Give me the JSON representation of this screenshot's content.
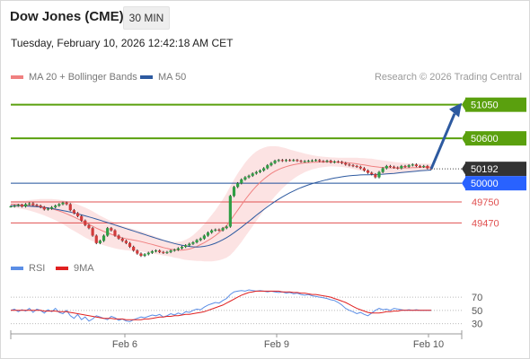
{
  "header": {
    "title": "Dow Jones (CME)",
    "timeframe_button": "30 MIN",
    "datetime": "Tuesday, February 10, 2026 12:42:18 AM CET",
    "copyright": "Research © 2026 Trading Central"
  },
  "legends": {
    "main": [
      {
        "label": "MA 20 + Bollinger Bands",
        "color": "#f08080"
      },
      {
        "label": "MA 50",
        "color": "#2d5aa0"
      }
    ],
    "rsi": [
      {
        "label": "RSI",
        "color": "#5b8ee6"
      },
      {
        "label": "9MA",
        "color": "#e02020"
      }
    ]
  },
  "chart_data": [
    {
      "type": "candlestick",
      "name": "price",
      "x_tick_labels": [
        "Feb 6",
        "Feb 9",
        "Feb 10"
      ],
      "ylim": [
        49150,
        51250
      ],
      "levels": [
        {
          "value": 51050,
          "label": "51050",
          "color": "#5aa00e",
          "style": "target-green"
        },
        {
          "value": 50600,
          "label": "50600",
          "color": "#5aa00e",
          "style": "target-green"
        },
        {
          "value": 50192,
          "label": "50192",
          "color": "#333333",
          "style": "last-price"
        },
        {
          "value": 50000,
          "label": "50000",
          "color": "#2962ff",
          "style": "pivot-blue"
        },
        {
          "value": 49750,
          "label": "49750",
          "color": "#e05050",
          "style": "support-red"
        },
        {
          "value": 49470,
          "label": "49470",
          "color": "#e05050",
          "style": "support-red"
        }
      ],
      "close": [
        49690,
        49700,
        49710,
        49690,
        49720,
        49730,
        49710,
        49700,
        49680,
        49650,
        49660,
        49680,
        49700,
        49720,
        49740,
        49720,
        49640,
        49600,
        49560,
        49500,
        49440,
        49400,
        49300,
        49200,
        49230,
        49300,
        49400,
        49370,
        49300,
        49260,
        49230,
        49200,
        49150,
        49100,
        49060,
        49030,
        49050,
        49070,
        49090,
        49100,
        49080,
        49070,
        49080,
        49100,
        49110,
        49130,
        49150,
        49170,
        49190,
        49210,
        49240,
        49260,
        49300,
        49340,
        49370,
        49380,
        49370,
        49400,
        49420,
        49830,
        49950,
        50000,
        50050,
        50080,
        50100,
        50130,
        50150,
        50170,
        50200,
        50240,
        50270,
        50300,
        50310,
        50300,
        50310,
        50305,
        50310,
        50300,
        50290,
        50295,
        50300,
        50305,
        50310,
        50295,
        50290,
        50300,
        50280,
        50290,
        50285,
        50270,
        50250,
        50240,
        50230,
        50220,
        50200,
        50170,
        50140,
        50120,
        50080,
        50150,
        50200,
        50230,
        50220,
        50210,
        50200,
        50230,
        50220,
        50240,
        50250,
        50230,
        50220,
        50230,
        50200,
        50192
      ],
      "ma20": [
        49720,
        49718,
        49715,
        49712,
        49708,
        49705,
        49700,
        49695,
        49688,
        49680,
        49670,
        49658,
        49645,
        49630,
        49612,
        49592,
        49570,
        49548,
        49525,
        49500,
        49475,
        49450,
        49425,
        49400,
        49378,
        49356,
        49336,
        49318,
        49300,
        49284,
        49270,
        49258,
        49248,
        49240,
        49232,
        49220,
        49208,
        49195,
        49182,
        49168,
        49155,
        49140,
        49128,
        49118,
        49110,
        49106,
        49105,
        49110,
        49120,
        49135,
        49155,
        49180,
        49205,
        49235,
        49265,
        49300,
        49340,
        49385,
        49435,
        49500,
        49570,
        49640,
        49710,
        49780,
        49845,
        49905,
        49960,
        50010,
        50055,
        50095,
        50130,
        50160,
        50185,
        50205,
        50222,
        50236,
        50248,
        50258,
        50266,
        50272,
        50276,
        50280,
        50282,
        50284,
        50285,
        50285,
        50285,
        50284,
        50282,
        50280,
        50276,
        50272,
        50266,
        50260,
        50252,
        50244,
        50236,
        50228,
        50220,
        50215,
        50210,
        50208,
        50206,
        50205,
        50204,
        50204,
        50205,
        50206,
        50208,
        50210,
        50212,
        50214,
        50215,
        50216
      ],
      "ma50": [
        49700,
        49700,
        49700,
        49698,
        49696,
        49694,
        49690,
        49686,
        49682,
        49676,
        49670,
        49662,
        49654,
        49645,
        49635,
        49625,
        49614,
        49602,
        49590,
        49577,
        49564,
        49550,
        49536,
        49521,
        49506,
        49490,
        49474,
        49458,
        49442,
        49426,
        49410,
        49394,
        49378,
        49362,
        49346,
        49330,
        49314,
        49298,
        49282,
        49266,
        49251,
        49236,
        49222,
        49208,
        49195,
        49183,
        49172,
        49163,
        49155,
        49150,
        49148,
        49150,
        49156,
        49166,
        49180,
        49198,
        49220,
        49245,
        49273,
        49304,
        49338,
        49374,
        49412,
        49451,
        49491,
        49531,
        49571,
        49610,
        49648,
        49685,
        49721,
        49755,
        49787,
        49817,
        49845,
        49872,
        49897,
        49920,
        49941,
        49960,
        49978,
        49994,
        50009,
        50023,
        50036,
        50048,
        50059,
        50069,
        50078,
        50086,
        50093,
        50099,
        50104,
        50108,
        50111,
        50113,
        50114,
        50115,
        50116,
        50118,
        50121,
        50124,
        50128,
        50132,
        50137,
        50142,
        50147,
        50152,
        50157,
        50162,
        50166,
        50170,
        50173,
        50176
      ],
      "bb_width": [
        40,
        45,
        50,
        55,
        60,
        70,
        80,
        90,
        100,
        110,
        120,
        130,
        140,
        150,
        160,
        170,
        180,
        185,
        190,
        195,
        200,
        200,
        200,
        195,
        190,
        185,
        180,
        175,
        170,
        165,
        160,
        155,
        150,
        145,
        140,
        135,
        130,
        125,
        120,
        115,
        110,
        105,
        100,
        100,
        105,
        110,
        120,
        135,
        150,
        170,
        195,
        220,
        250,
        280,
        310,
        340,
        370,
        400,
        430,
        460,
        480,
        490,
        495,
        495,
        490,
        480,
        465,
        445,
        420,
        395,
        365,
        335,
        305,
        275,
        245,
        215,
        190,
        165,
        145,
        125,
        110,
        95,
        85,
        75,
        70,
        65,
        60,
        60,
        60,
        62,
        65,
        70,
        75,
        80,
        85,
        90,
        95,
        100,
        100,
        98,
        95,
        90,
        85,
        80,
        75,
        70,
        65,
        60,
        55,
        52,
        50,
        48,
        46,
        45
      ],
      "forecast_arrow": {
        "from": 50192,
        "to": 51050
      }
    },
    {
      "type": "line",
      "name": "rsi_panel",
      "ylim": [
        20,
        85
      ],
      "y_ticks": [
        70,
        50,
        30
      ],
      "rsi": [
        50,
        52,
        48,
        51,
        49,
        53,
        47,
        52,
        50,
        46,
        51,
        48,
        53,
        47,
        45,
        50,
        42,
        38,
        44,
        36,
        40,
        34,
        37,
        42,
        40,
        38,
        36,
        41,
        39,
        35,
        37,
        34,
        33,
        36,
        38,
        40,
        39,
        41,
        43,
        42,
        44,
        40,
        42,
        45,
        43,
        46,
        44,
        48,
        47,
        50,
        52,
        51,
        55,
        58,
        60,
        62,
        61,
        65,
        68,
        74,
        78,
        79,
        80,
        79,
        81,
        80,
        79,
        80,
        79,
        78,
        79,
        78,
        77,
        78,
        76,
        77,
        75,
        76,
        74,
        73,
        74,
        72,
        71,
        70,
        69,
        68,
        66,
        65,
        62,
        58,
        53,
        50,
        48,
        45,
        47,
        44,
        42,
        46,
        50,
        53,
        51,
        52,
        50,
        53,
        52,
        51,
        50,
        51,
        50,
        51,
        50,
        50,
        50,
        50
      ],
      "ma9": [
        50,
        50,
        50,
        50,
        50,
        50,
        50,
        50,
        50,
        49,
        49,
        49,
        49,
        48,
        48,
        48,
        47,
        46,
        45,
        44,
        43,
        42,
        41,
        40,
        39,
        38,
        38,
        38,
        37,
        37,
        37,
        36,
        36,
        36,
        36,
        36,
        37,
        37,
        38,
        39,
        40,
        40,
        41,
        41,
        42,
        42,
        43,
        44,
        44,
        45,
        46,
        47,
        48,
        50,
        52,
        54,
        56,
        58,
        61,
        64,
        67,
        70,
        73,
        75,
        77,
        78,
        79,
        79,
        79,
        79,
        79,
        79,
        79,
        78,
        78,
        78,
        77,
        77,
        76,
        76,
        75,
        74,
        74,
        73,
        72,
        71,
        70,
        68,
        66,
        64,
        62,
        59,
        56,
        53,
        51,
        49,
        47,
        46,
        46,
        46,
        47,
        48,
        48,
        49,
        49,
        50,
        50,
        50,
        50,
        50,
        50,
        50,
        50,
        50
      ]
    }
  ]
}
